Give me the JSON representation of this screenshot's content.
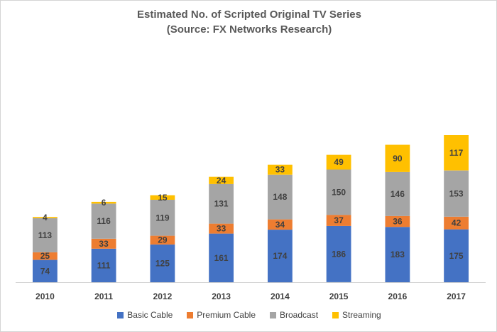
{
  "chart_data": {
    "type": "bar",
    "stacked": true,
    "title": "Estimated No. of Scripted Original TV Series",
    "subtitle": "(Source: FX Networks Research)",
    "xlabel": "",
    "ylabel": "",
    "ylim": [
      0,
      500
    ],
    "grid": false,
    "legend_position": "bottom",
    "categories": [
      "2010",
      "2011",
      "2012",
      "2013",
      "2014",
      "2015",
      "2016",
      "2017"
    ],
    "series": [
      {
        "name": "Basic Cable",
        "color": "#4472C4",
        "values": [
          74,
          111,
          125,
          161,
          174,
          186,
          183,
          175
        ]
      },
      {
        "name": "Premium Cable",
        "color": "#ED7D31",
        "values": [
          25,
          33,
          29,
          33,
          34,
          37,
          36,
          42
        ]
      },
      {
        "name": "Broadcast",
        "color": "#A5A5A5",
        "values": [
          113,
          116,
          119,
          131,
          148,
          150,
          146,
          153
        ]
      },
      {
        "name": "Streaming",
        "color": "#FFC000",
        "values": [
          4,
          6,
          15,
          24,
          33,
          49,
          90,
          117
        ]
      }
    ]
  }
}
